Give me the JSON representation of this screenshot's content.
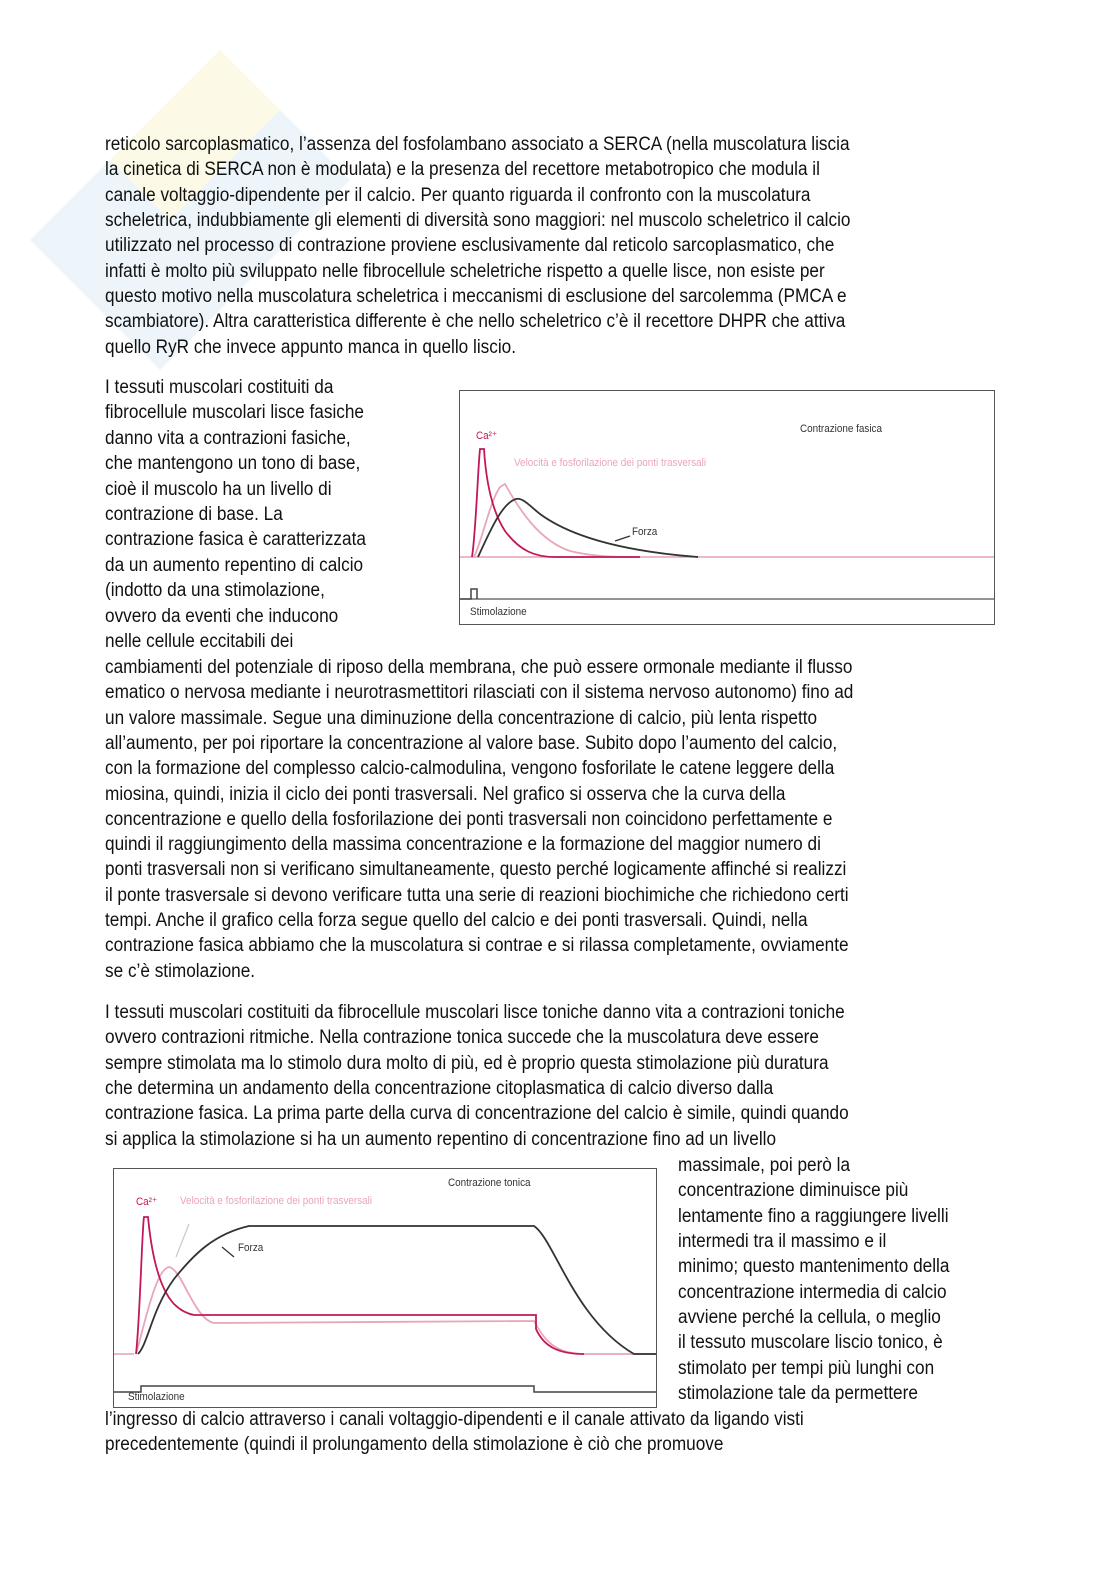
{
  "paragraphs": [
    {
      "lines": [
        "reticolo sarcoplasmatico, l’assenza del fosfolambano associato a SERCA (nella muscolatura liscia",
        "la cinetica di SERCA non è modulata) e la presenza del recettore metabotropico che modula il",
        "canale voltaggio-dipendente per il calcio. Per quanto riguarda il confronto con la muscolatura",
        "scheletrica, indubbiamente gli elementi di diversità sono maggiori: nel muscolo scheletrico il calcio",
        "utilizzato nel processo di contrazione proviene esclusivamente dal reticolo sarcoplasmatico, che",
        "infatti è molto più sviluppato nelle fibrocellule scheletriche rispetto a quelle lisce, non esiste per",
        "questo motivo nella muscolatura scheletrica i meccanismi di esclusione del sarcolemma (PMCA e",
        "scambiatore). Altra caratteristica differente è che nello scheletrico c’è il recettore DHPR che attiva",
        "quello RyR che invece appunto manca in quello liscio."
      ]
    },
    {
      "lines": [
        "I tessuti muscolari costituiti da",
        "fibrocellule muscolari lisce fasiche",
        "danno vita a contrazioni fasiche,",
        "che mantengono un tono di base,",
        "cioè il muscolo ha un livello di",
        "contrazione di base. La",
        "contrazione fasica è caratterizzata",
        "da un aumento repentino di calcio",
        "(indotto da una stimolazione,",
        "ovvero da eventi che inducono",
        "nelle cellule eccitabili dei",
        "cambiamenti del potenziale di riposo della membrana, che può essere ormonale mediante il flusso",
        "ematico o nervosa mediante i neurotrasmettitori rilasciati con il sistema nervoso autonomo) fino ad",
        "un valore massimale. Segue una diminuzione della concentrazione di calcio, più lenta rispetto",
        "all’aumento, per poi riportare la concentrazione al valore base. Subito dopo l’aumento del calcio,",
        "con la formazione del complesso calcio-calmodulina, vengono fosforilate le catene leggere della",
        "miosina, quindi, inizia il ciclo dei ponti trasversali. Nel grafico si osserva che la curva della",
        "concentrazione e quello della fosforilazione dei ponti trasversali non coincidono perfettamente e",
        "quindi il raggiungimento della massima concentrazione e la formazione del maggior numero di",
        "ponti trasversali non si verificano simultaneamente, questo perché logicamente affinché si realizzi",
        "il ponte trasversale si devono verificare tutta una serie di reazioni biochimiche che richiedono certi",
        "tempi. Anche il grafico cella forza segue quello del calcio e dei ponti trasversali. Quindi, nella",
        "contrazione fasica abbiamo che la muscolatura si contrae e si rilassa completamente, ovviamente",
        "se c’è stimolazione."
      ]
    },
    {
      "lines": [
        "I tessuti muscolari costituiti da fibrocellule muscolari lisce toniche danno vita a contrazioni toniche",
        "ovvero contrazioni ritmiche. Nella contrazione tonica succede che la muscolatura deve essere",
        "sempre stimolata ma lo stimolo dura molto di più, ed è proprio questa stimolazione più duratura",
        "che determina un andamento della concentrazione citoplasmatica di calcio diverso dalla",
        "contrazione fasica. La prima parte della curva di concentrazione del calcio è simile, quindi quando",
        "si applica la stimolazione si ha un aumento repentino di concentrazione fino ad un livello",
        "massimale, poi però la",
        "concentrazione diminuisce più",
        "lentamente fino a raggiungere livelli",
        "intermedi tra il massimo e il",
        "minimo; questo mantenimento della",
        "concentrazione intermedia di calcio",
        "avviene perché la cellula, o meglio",
        "il tessuto muscolare liscio tonico, è",
        "stimolato per tempi più lunghi con",
        "stimolazione tale da permettere",
        "l’ingresso di calcio attraverso i canali voltaggio-dipendenti e il canale attivato da ligando visti",
        "precedentemente (quindi il prolungamento della stimolazione è ciò che promuove"
      ]
    }
  ],
  "figures": [
    {
      "title": "Contrazione fasica",
      "ca_label": "Ca²⁺",
      "velocity_label": "Velocità e fosforilazione dei ponti trasversali",
      "force_label": "Forza",
      "stim_label": "Stimolazione"
    },
    {
      "title": "Contrazione tonica",
      "ca_label": "Ca²⁺",
      "velocity_label": "Velocità e fosforilazione dei ponti trasversali",
      "force_label": "Forza",
      "stim_label": "Stimolazione"
    }
  ],
  "colors": {
    "calcium": "#c2185b",
    "velocity": "#e9a6b8",
    "force": "#333333",
    "baseline": "#e7a0b4"
  }
}
